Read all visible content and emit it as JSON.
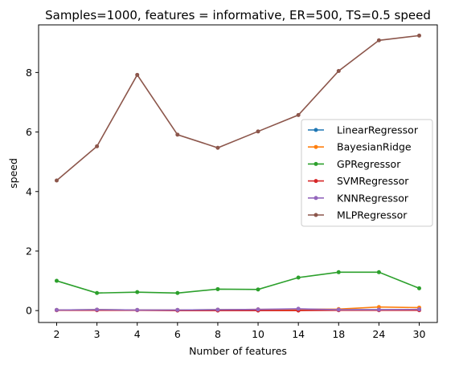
{
  "chart_data": {
    "type": "line",
    "title": "Samples=1000, features = informative, ER=500, TS=0.5 speed",
    "xlabel": "Number of features",
    "ylabel": "speed",
    "categories": [
      "2",
      "3",
      "4",
      "6",
      "8",
      "10",
      "14",
      "18",
      "24",
      "30"
    ],
    "ylim": [
      -0.4,
      9.6
    ],
    "yticks": [
      0,
      2,
      4,
      6,
      8
    ],
    "grid": false,
    "legend_position": "center-right",
    "series": [
      {
        "name": "LinearRegressor",
        "color": "#1f77b4",
        "values": [
          0.02,
          0.03,
          0.02,
          0.02,
          0.03,
          0.03,
          0.04,
          0.03,
          0.03,
          0.03
        ]
      },
      {
        "name": "BayesianRidge",
        "color": "#ff7f0e",
        "values": [
          0.02,
          0.03,
          0.02,
          0.02,
          0.03,
          0.04,
          0.04,
          0.05,
          0.12,
          0.1
        ]
      },
      {
        "name": "GPRegressor",
        "color": "#2ca02c",
        "values": [
          1.0,
          0.59,
          0.62,
          0.59,
          0.72,
          0.71,
          1.11,
          1.29,
          1.29,
          0.75
        ]
      },
      {
        "name": "SVMRegressor",
        "color": "#d62728",
        "values": [
          0.01,
          0.01,
          0.01,
          0.0,
          0.0,
          0.0,
          0.0,
          0.01,
          0.01,
          0.01
        ]
      },
      {
        "name": "KNNRegressor",
        "color": "#9467bd",
        "values": [
          0.02,
          0.03,
          0.02,
          0.02,
          0.03,
          0.04,
          0.06,
          0.03,
          0.03,
          0.04
        ]
      },
      {
        "name": "MLPRegressor",
        "color": "#8c564b",
        "values": [
          4.37,
          5.52,
          7.92,
          5.91,
          5.47,
          6.02,
          6.57,
          8.05,
          9.08,
          9.24
        ]
      }
    ]
  }
}
